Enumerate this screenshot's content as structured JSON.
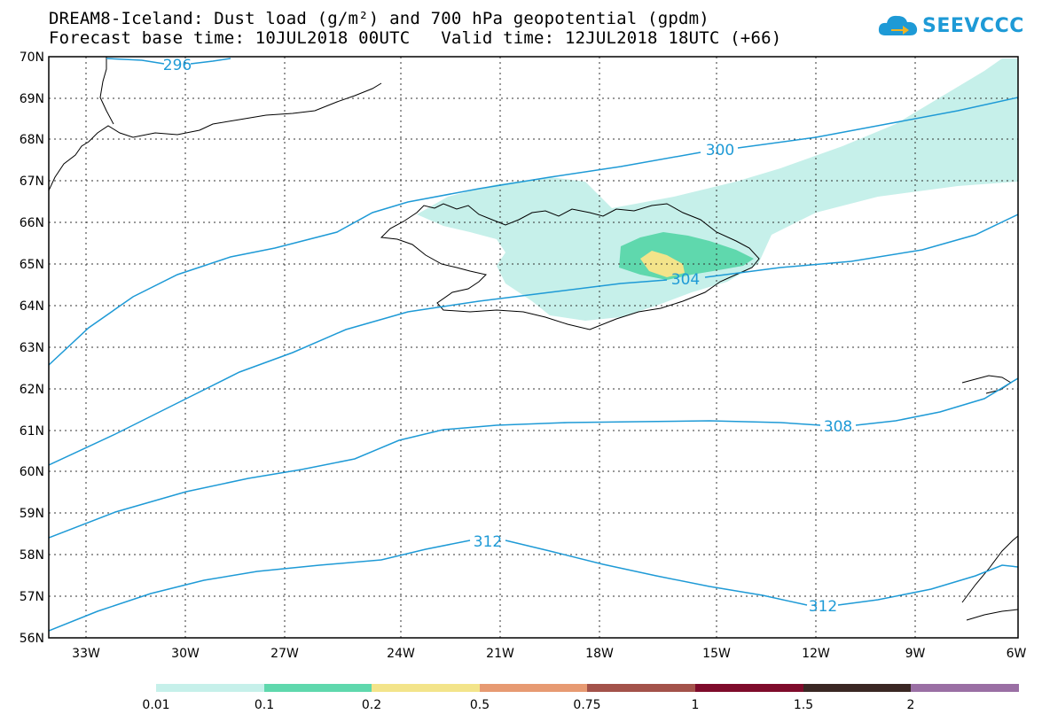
{
  "title": {
    "line1": "DREAM8-Iceland: Dust load (g/m²) and 700 hPa geopotential (gpdm)",
    "line2": "Forecast base time: 10JUL2018 00UTC   Valid time: 12JUL2018 18UTC (+66)"
  },
  "logo": {
    "text": "SEEVCCC",
    "icon": "cloud-arrow-icon",
    "color": "#1e9ad6"
  },
  "map": {
    "lat_labels": [
      "70N",
      "69N",
      "68N",
      "67N",
      "66N",
      "65N",
      "64N",
      "63N",
      "62N",
      "61N",
      "60N",
      "59N",
      "58N",
      "57N",
      "56N"
    ],
    "lon_labels": [
      "33W",
      "30W",
      "27W",
      "24W",
      "21W",
      "18W",
      "15W",
      "12W",
      "9W",
      "6W"
    ],
    "contour_color": "#1e9ad6",
    "contour_labels": [
      "296",
      "300",
      "304",
      "308",
      "312",
      "312"
    ]
  },
  "colorbar": {
    "colors": [
      "#c6f0ea",
      "#5fd8ad",
      "#f3e48a",
      "#e79a72",
      "#a3524a",
      "#7e0b2b",
      "#3a2724",
      "#9a6fa4"
    ],
    "ticks": [
      "0.01",
      "0.1",
      "0.2",
      "0.5",
      "0.75",
      "1",
      "1.5",
      "2"
    ]
  }
}
